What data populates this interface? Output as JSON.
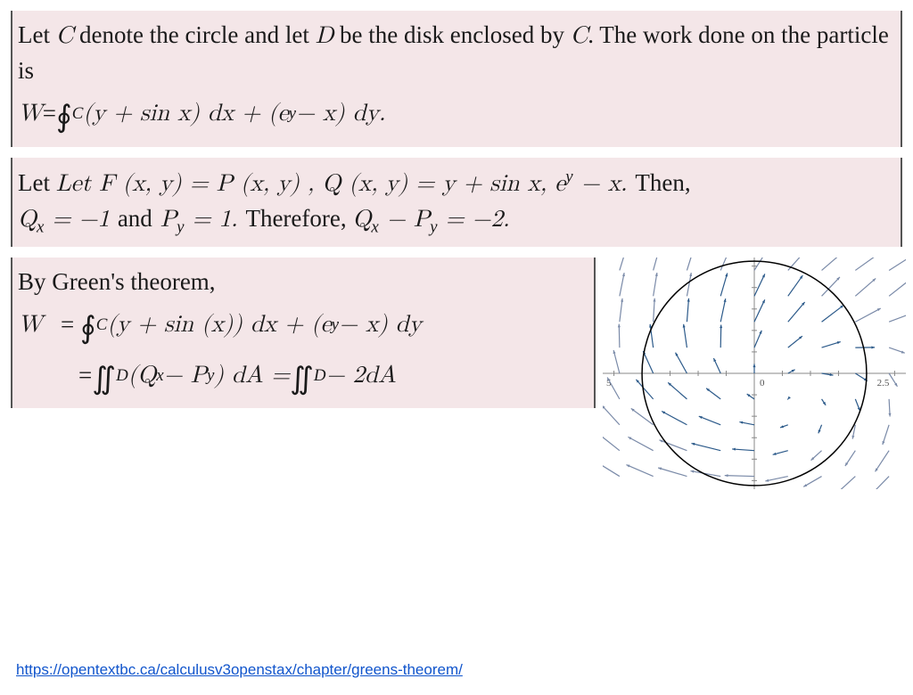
{
  "block1": {
    "intro_a": "Let ",
    "C": "C",
    "intro_b": " denote the circle and let ",
    "D": "D",
    "intro_c": " be the disk enclosed by ",
    "C2": "C",
    "intro_d": ". The work done on the particle is",
    "eq_lhs": "W",
    "eq_eq": " = ",
    "eq_int": "∮",
    "eq_int_sub": "C",
    "eq_body": " (y + sin x) dx + (e",
    "eq_sup": "y",
    "eq_tail": " − x) dy."
  },
  "block2": {
    "l1a": "Let F (x, y) = P (x, y) , Q (x, y)  = y + sin x, e",
    "l1sup": "y",
    "l1b": " − x. ",
    "l1then": "Then,",
    "l2a": "Q",
    "l2a_sub": "x",
    "l2b": " = −1 ",
    "l2and": "and",
    "l2c": " P",
    "l2c_sub": "y",
    "l2d": " = 1. ",
    "l2therefore": "Therefore, ",
    "l2e": "Q",
    "l2e_sub": "x",
    "l2f": " − P",
    "l2f_sub": "y",
    "l2g": " = −2."
  },
  "block3": {
    "heading": "By Green's theorem,",
    "r1_lhs": "W",
    "r1_eq": "   = ",
    "r1_int": "∮",
    "r1_int_sub": "C",
    "r1_body": " (y + sin (x)) dx + (e",
    "r1_sup": "y",
    "r1_tail": " − x) dy",
    "r2_eq": "= ",
    "r2_int": "∬",
    "r2_int_sub": "D",
    "r2_body": " (Q",
    "r2_qx": "x",
    "r2_mid": " − P",
    "r2_py": "y",
    "r2_da": ") dA = ",
    "r2_int2": "∬",
    "r2_int2_sub": "D",
    "r2_tail": " − 2dA"
  },
  "link_text": "https://opentextbc.ca/calculusv3openstax/chapter/greens-theorem/",
  "vector_field": {
    "type": "vector-field-with-circle",
    "xlim": [
      -2.7,
      2.7
    ],
    "ylim": [
      -2.7,
      2.7
    ],
    "circle_center": [
      0,
      0
    ],
    "circle_radius": 2.0,
    "circle_stroke": "#000000",
    "circle_stroke_width": 1.5,
    "grid_spacing": 0.5,
    "arrow_grid_step": 0.6,
    "arrow_scale": 0.22,
    "arrow_color_inner": "#2c5a8a",
    "arrow_color_outer": "#7a8aa8",
    "axis_color": "#888888",
    "x_tick_label_left": "5",
    "x_tick_label_right": "2.5",
    "origin_label": "0",
    "background_color": "#ffffff",
    "tick_fontsize": 11,
    "tick_color": "#555555"
  }
}
